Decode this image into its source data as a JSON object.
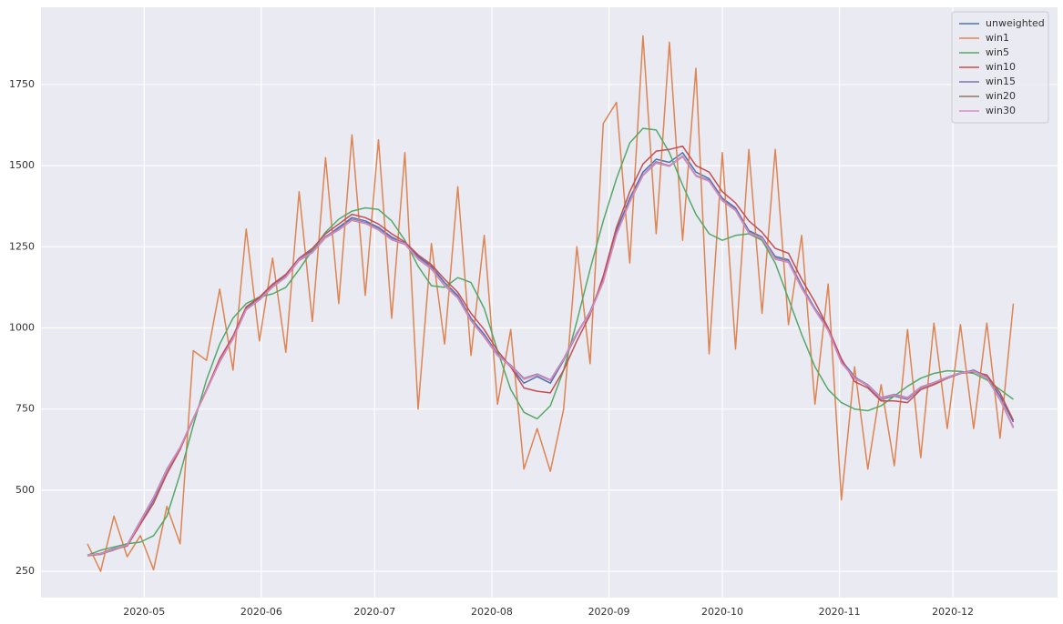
{
  "chart_data": {
    "type": "line",
    "x": [
      107,
      110.5,
      114,
      117.5,
      121,
      124.5,
      128,
      131.5,
      135,
      138.5,
      142,
      145.5,
      149,
      152.5,
      156,
      159.5,
      163,
      166.5,
      170,
      173.5,
      177,
      180.5,
      184,
      187.5,
      191,
      194.5,
      198,
      201.5,
      205,
      208.5,
      212,
      215.5,
      219,
      222.5,
      226,
      229.5,
      233,
      236.5,
      240,
      243.5,
      247,
      250.5,
      254,
      257.5,
      261,
      264.5,
      268,
      271.5,
      275,
      278.5,
      282,
      285.5,
      289,
      292.5,
      296,
      299.5,
      303,
      306.5,
      310,
      313.5,
      317,
      320.5,
      324,
      327.5,
      331,
      334.5,
      338,
      341.5,
      345,
      348.5,
      352
    ],
    "series": [
      {
        "name": "unweighted",
        "color": "#4c72b0",
        "values": [
          300,
          305,
          320,
          330,
          400,
          470,
          560,
          630,
          720,
          810,
          900,
          970,
          1060,
          1090,
          1130,
          1160,
          1210,
          1240,
          1280,
          1310,
          1340,
          1330,
          1310,
          1280,
          1260,
          1220,
          1190,
          1140,
          1100,
          1030,
          980,
          920,
          880,
          830,
          850,
          830,
          900,
          980,
          1050,
          1150,
          1300,
          1400,
          1480,
          1520,
          1510,
          1540,
          1480,
          1460,
          1400,
          1370,
          1300,
          1280,
          1220,
          1210,
          1130,
          1060,
          1000,
          900,
          850,
          820,
          780,
          790,
          780,
          815,
          830,
          845,
          860,
          870,
          850,
          790,
          710
        ]
      },
      {
        "name": "win1",
        "color": "#dd8452",
        "values": [
          335,
          250,
          420,
          295,
          360,
          255,
          450,
          335,
          930,
          900,
          1120,
          870,
          1305,
          960,
          1215,
          925,
          1420,
          1020,
          1525,
          1075,
          1595,
          1100,
          1580,
          1030,
          1540,
          750,
          1260,
          950,
          1435,
          915,
          1285,
          765,
          995,
          565,
          690,
          558,
          750,
          1250,
          890,
          1630,
          1695,
          1200,
          1900,
          1290,
          1880,
          1270,
          1800,
          920,
          1540,
          935,
          1550,
          1045,
          1550,
          1010,
          1285,
          765,
          1135,
          470,
          880,
          565,
          825,
          575,
          995,
          600,
          1015,
          690,
          1010,
          690,
          1015,
          660,
          1075
        ]
      },
      {
        "name": "win5",
        "color": "#55a868",
        "values": [
          300,
          315,
          325,
          335,
          340,
          360,
          420,
          550,
          700,
          840,
          950,
          1030,
          1075,
          1095,
          1105,
          1125,
          1180,
          1240,
          1295,
          1335,
          1360,
          1370,
          1365,
          1330,
          1270,
          1190,
          1130,
          1125,
          1155,
          1140,
          1060,
          930,
          810,
          740,
          720,
          760,
          870,
          1020,
          1180,
          1330,
          1460,
          1570,
          1615,
          1610,
          1540,
          1440,
          1350,
          1290,
          1270,
          1285,
          1290,
          1270,
          1200,
          1090,
          980,
          880,
          810,
          770,
          750,
          745,
          760,
          790,
          820,
          845,
          860,
          868,
          866,
          860,
          840,
          810,
          780
        ]
      },
      {
        "name": "win10",
        "color": "#c44e52",
        "values": [
          300,
          305,
          318,
          328,
          395,
          460,
          550,
          625,
          720,
          810,
          905,
          975,
          1065,
          1095,
          1135,
          1165,
          1215,
          1245,
          1290,
          1320,
          1350,
          1340,
          1320,
          1290,
          1265,
          1225,
          1195,
          1150,
          1110,
          1045,
          995,
          930,
          880,
          815,
          805,
          800,
          870,
          960,
          1040,
          1160,
          1310,
          1420,
          1505,
          1545,
          1550,
          1560,
          1500,
          1480,
          1420,
          1385,
          1330,
          1295,
          1245,
          1230,
          1150,
          1080,
          1000,
          905,
          835,
          815,
          775,
          775,
          770,
          810,
          825,
          845,
          860,
          865,
          855,
          800,
          715
        ]
      },
      {
        "name": "win15",
        "color": "#8172b3",
        "values": [
          300,
          302,
          318,
          332,
          405,
          478,
          565,
          632,
          722,
          808,
          895,
          968,
          1058,
          1088,
          1128,
          1158,
          1212,
          1235,
          1282,
          1305,
          1335,
          1325,
          1305,
          1275,
          1262,
          1215,
          1185,
          1132,
          1095,
          1025,
          975,
          918,
          885,
          845,
          858,
          840,
          905,
          985,
          1048,
          1145,
          1290,
          1390,
          1472,
          1512,
          1500,
          1530,
          1470,
          1455,
          1395,
          1365,
          1295,
          1278,
          1215,
          1205,
          1125,
          1058,
          995,
          895,
          848,
          825,
          785,
          795,
          785,
          818,
          832,
          848,
          862,
          868,
          848,
          780,
          695
        ]
      },
      {
        "name": "win20",
        "color": "#937860",
        "values": [
          298,
          303,
          316,
          330,
          402,
          475,
          562,
          630,
          720,
          806,
          896,
          966,
          1056,
          1086,
          1126,
          1156,
          1208,
          1232,
          1278,
          1302,
          1332,
          1322,
          1302,
          1272,
          1258,
          1212,
          1182,
          1130,
          1092,
          1022,
          972,
          915,
          882,
          842,
          855,
          838,
          902,
          982,
          1045,
          1142,
          1288,
          1388,
          1470,
          1508,
          1498,
          1528,
          1468,
          1452,
          1392,
          1362,
          1292,
          1275,
          1212,
          1202,
          1122,
          1055,
          992,
          892,
          845,
          822,
          782,
          792,
          782,
          816,
          830,
          846,
          860,
          866,
          846,
          778,
          692
        ]
      },
      {
        "name": "win30",
        "color": "#da8bc3",
        "values": [
          300,
          304,
          318,
          331,
          403,
          476,
          563,
          631,
          721,
          807,
          897,
          967,
          1057,
          1087,
          1127,
          1157,
          1209,
          1233,
          1279,
          1303,
          1333,
          1323,
          1303,
          1273,
          1259,
          1213,
          1183,
          1131,
          1093,
          1023,
          973,
          916,
          883,
          843,
          856,
          839,
          903,
          983,
          1046,
          1143,
          1289,
          1389,
          1471,
          1509,
          1499,
          1529,
          1469,
          1453,
          1393,
          1363,
          1293,
          1276,
          1213,
          1203,
          1123,
          1056,
          993,
          893,
          846,
          823,
          783,
          793,
          783,
          817,
          831,
          847,
          861,
          867,
          847,
          779,
          693
        ]
      }
    ],
    "xlim": [
      94.7,
      363.7
    ],
    "xticks": [
      {
        "value": 122,
        "label": "2020-05"
      },
      {
        "value": 153,
        "label": "2020-06"
      },
      {
        "value": 183,
        "label": "2020-07"
      },
      {
        "value": 214,
        "label": "2020-08"
      },
      {
        "value": 245,
        "label": "2020-09"
      },
      {
        "value": 275,
        "label": "2020-10"
      },
      {
        "value": 306,
        "label": "2020-11"
      },
      {
        "value": 336,
        "label": "2020-12"
      }
    ],
    "ylim": [
      169,
      1988
    ],
    "yticks": [
      250,
      500,
      750,
      1000,
      1250,
      1500,
      1750
    ],
    "grid": true,
    "legend": "upper right"
  }
}
